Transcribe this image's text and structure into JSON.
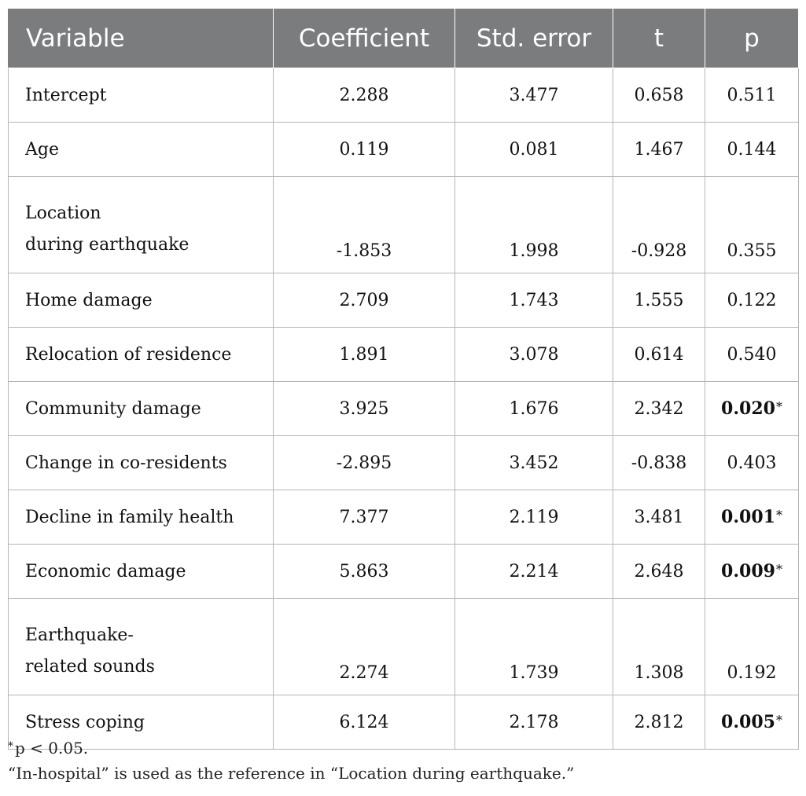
{
  "table": {
    "headers": [
      "Variable",
      "Coefficient",
      "Std. error",
      "t",
      "p"
    ],
    "rows": [
      {
        "variable": [
          "Intercept"
        ],
        "coefficient": "2.288",
        "std_error": "3.477",
        "t": "0.658",
        "p": "0.511",
        "significant": false
      },
      {
        "variable": [
          "Age"
        ],
        "coefficient": "0.119",
        "std_error": "0.081",
        "t": "1.467",
        "p": "0.144",
        "significant": false
      },
      {
        "variable": [
          "Location",
          "during earthquake"
        ],
        "coefficient": "-1.853",
        "std_error": "1.998",
        "t": "-0.928",
        "p": "0.355",
        "significant": false
      },
      {
        "variable": [
          "Home damage"
        ],
        "coefficient": "2.709",
        "std_error": "1.743",
        "t": "1.555",
        "p": "0.122",
        "significant": false
      },
      {
        "variable": [
          "Relocation of residence"
        ],
        "coefficient": "1.891",
        "std_error": "3.078",
        "t": "0.614",
        "p": "0.540",
        "significant": false
      },
      {
        "variable": [
          "Community damage"
        ],
        "coefficient": "3.925",
        "std_error": "1.676",
        "t": "2.342",
        "p": "0.020",
        "significant": true
      },
      {
        "variable": [
          "Change in co-residents"
        ],
        "coefficient": "-2.895",
        "std_error": "3.452",
        "t": "-0.838",
        "p": "0.403",
        "significant": false
      },
      {
        "variable": [
          "Decline in family health"
        ],
        "coefficient": "7.377",
        "std_error": "2.119",
        "t": "3.481",
        "p": "0.001",
        "significant": true
      },
      {
        "variable": [
          "Economic damage"
        ],
        "coefficient": "5.863",
        "std_error": "2.214",
        "t": "2.648",
        "p": "0.009",
        "significant": true
      },
      {
        "variable": [
          "Earthquake-",
          "related sounds"
        ],
        "coefficient": "2.274",
        "std_error": "1.739",
        "t": "1.308",
        "p": "0.192",
        "significant": false
      },
      {
        "variable": [
          "Stress coping"
        ],
        "coefficient": "6.124",
        "std_error": "2.178",
        "t": "2.812",
        "p": "0.005",
        "significant": true
      }
    ],
    "significance_marker": "*"
  },
  "notes": {
    "significance_note": "p < 0.05.",
    "reference_note": "“In-hospital” is used as the reference in “Location during earthquake.”"
  },
  "colors": {
    "header_background": "#7a7c7e",
    "header_text": "#ffffff",
    "cell_border": "#b5b5b5"
  }
}
